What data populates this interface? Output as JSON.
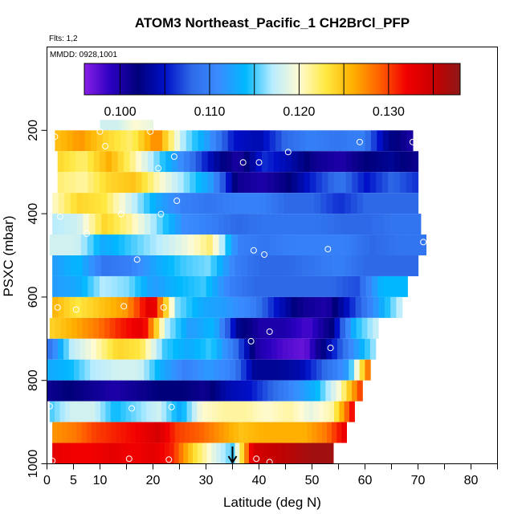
{
  "chart_data": {
    "type": "heatmap",
    "title": "ATOM3 Northeast_Pacific_1 CH2BrCl_PFP",
    "annotations": [
      "Flts: 1,2",
      "MMDD: 0928,1001"
    ],
    "xlabel": "Latitude (deg N)",
    "ylabel": "PSXC (mbar)",
    "xlim": [
      0,
      85
    ],
    "ylim": [
      1000,
      0
    ],
    "x_ticks": [
      0,
      5,
      10,
      20,
      30,
      40,
      50,
      60,
      70,
      80
    ],
    "x_minor_ticks": [
      15,
      25,
      35,
      45,
      55,
      65,
      75,
      85
    ],
    "y_ticks": [
      200,
      400,
      600,
      800,
      1000
    ],
    "colorbar": {
      "range": [
        0.096,
        0.138
      ],
      "tick_values": [
        0.1,
        0.11,
        0.12,
        0.13
      ],
      "tick_labels": [
        "0.100",
        "0.110",
        "0.120",
        "0.130"
      ],
      "colors": [
        "#8a1ee6",
        "#2a00c0",
        "#00007a",
        "#0010c8",
        "#2e6ae8",
        "#3a8cff",
        "#00b8ff",
        "#b8ecff",
        "#fffbd2",
        "#ffe840",
        "#ffb000",
        "#ff6000",
        "#f20000",
        "#c80000",
        "#8e1818"
      ]
    },
    "rows": [
      {
        "p": 200,
        "x0": 10,
        "x1": 20,
        "v": [
          0.118,
          0.118,
          0.12,
          0.119
        ]
      },
      {
        "p": 225,
        "x0": 1.5,
        "x1": 69,
        "v": [
          0.125,
          0.127,
          0.124,
          0.122,
          0.128,
          0.117,
          0.112,
          0.105,
          0.104,
          0.108,
          0.11,
          0.109,
          0.11,
          0.103,
          0.1
        ]
      },
      {
        "p": 275,
        "x0": 2,
        "x1": 70,
        "v": [
          0.124,
          0.122,
          0.126,
          0.121,
          0.115,
          0.11,
          0.104,
          0.1,
          0.106,
          0.104,
          0.101,
          0.1,
          0.102,
          0.103,
          0.101
        ]
      },
      {
        "p": 325,
        "x0": 2,
        "x1": 70,
        "v": [
          0.122,
          0.121,
          0.124,
          0.125,
          0.12,
          0.116,
          0.112,
          0.101,
          0.1,
          0.102,
          0.106,
          0.109,
          0.105,
          0.108,
          0.106
        ]
      },
      {
        "p": 375,
        "x0": 1,
        "x1": 70,
        "v": [
          0.12,
          0.124,
          0.123,
          0.118,
          0.113,
          0.11,
          0.109,
          0.11,
          0.11,
          0.108,
          0.108,
          0.106,
          0.108,
          0.108,
          0.108
        ]
      },
      {
        "p": 425,
        "x0": 1,
        "x1": 70.5,
        "v": [
          0.117,
          0.118,
          0.124,
          0.121,
          0.116,
          0.111,
          0.11,
          0.108,
          0.109,
          0.109,
          0.109,
          0.108,
          0.108,
          0.109,
          0.109
        ]
      },
      {
        "p": 475,
        "x0": 0.5,
        "x1": 71.5,
        "v": [
          0.118,
          0.118,
          0.113,
          0.115,
          0.117,
          0.119,
          0.122,
          0.11,
          0.109,
          0.11,
          0.11,
          0.11,
          0.108,
          0.109,
          0.109
        ]
      },
      {
        "p": 525,
        "x0": 1,
        "x1": 70,
        "v": [
          0.112,
          0.114,
          0.109,
          0.11,
          0.113,
          0.115,
          0.116,
          0.11,
          0.108,
          0.108,
          0.109,
          0.11,
          0.108,
          0.108,
          0.108
        ]
      },
      {
        "p": 575,
        "x0": 1,
        "x1": 68,
        "v": [
          0.112,
          0.113,
          0.117,
          0.116,
          0.112,
          0.114,
          0.115,
          0.11,
          0.108,
          0.108,
          0.108,
          0.108,
          0.107,
          0.114,
          0.114
        ]
      },
      {
        "p": 625,
        "x0": 1,
        "x1": 67,
        "v": [
          0.126,
          0.123,
          0.125,
          0.127,
          0.134,
          0.116,
          0.113,
          0.112,
          0.11,
          0.105,
          0.101,
          0.1,
          0.106,
          0.112,
          0.118
        ]
      },
      {
        "p": 675,
        "x0": 0.5,
        "x1": 62.5,
        "v": [
          0.124,
          0.126,
          0.128,
          0.131,
          0.133,
          0.117,
          0.112,
          0.114,
          0.103,
          0.1,
          0.1,
          0.098,
          0.102,
          0.114,
          0.118
        ]
      },
      {
        "p": 725,
        "x0": 0,
        "x1": 62,
        "v": [
          0.108,
          0.117,
          0.12,
          0.124,
          0.123,
          0.115,
          0.113,
          0.115,
          0.109,
          0.1,
          0.098,
          0.097,
          0.104,
          0.111,
          0.117
        ]
      },
      {
        "p": 775,
        "x0": 0,
        "x1": 61,
        "v": [
          0.113,
          0.114,
          0.117,
          0.118,
          0.118,
          0.113,
          0.11,
          0.112,
          0.11,
          0.103,
          0.103,
          0.104,
          0.108,
          0.112,
          0.13
        ]
      },
      {
        "p": 825,
        "x0": 0,
        "x1": 59.5,
        "v": [
          0.101,
          0.102,
          0.101,
          0.1,
          0.101,
          0.102,
          0.102,
          0.101,
          0.104,
          0.105,
          0.108,
          0.111,
          0.114,
          0.12,
          0.131
        ]
      },
      {
        "p": 875,
        "x0": 0.5,
        "x1": 58,
        "v": [
          0.115,
          0.118,
          0.118,
          0.114,
          0.116,
          0.118,
          0.113,
          0.12,
          0.121,
          0.121,
          0.12,
          0.121,
          0.119,
          0.121,
          0.133
        ]
      },
      {
        "p": 925,
        "x0": 1,
        "x1": 56.5,
        "v": [
          0.127,
          0.128,
          0.13,
          0.131,
          0.132,
          0.134,
          0.13,
          0.129,
          0.127,
          0.125,
          0.126,
          0.126,
          0.126,
          0.128,
          0.133
        ]
      },
      {
        "p": 975,
        "x0": 1,
        "x1": 54,
        "v": [
          0.133,
          0.132,
          0.132,
          0.133,
          0.132,
          0.133,
          0.131,
          0.124,
          0.119,
          0.115,
          0.134,
          0.135,
          0.136,
          0.137,
          0.137
        ]
      }
    ],
    "points": [
      [
        1.5,
        215
      ],
      [
        10,
        203
      ],
      [
        11,
        238
      ],
      [
        19.5,
        203
      ],
      [
        24,
        263
      ],
      [
        37,
        277
      ],
      [
        40,
        277
      ],
      [
        45.5,
        252
      ],
      [
        59,
        228
      ],
      [
        69,
        228
      ],
      [
        21,
        291
      ],
      [
        24.5,
        369
      ],
      [
        2.5,
        407
      ],
      [
        14,
        401
      ],
      [
        21.5,
        401
      ],
      [
        7.5,
        448
      ],
      [
        39,
        488
      ],
      [
        41,
        498
      ],
      [
        53,
        485
      ],
      [
        71,
        468
      ],
      [
        17,
        510
      ],
      [
        0,
        510
      ],
      [
        2,
        625
      ],
      [
        5.5,
        630
      ],
      [
        14.5,
        622
      ],
      [
        22,
        625
      ],
      [
        38.5,
        706
      ],
      [
        42,
        683
      ],
      [
        53.5,
        722
      ],
      [
        0.5,
        862
      ],
      [
        16,
        867
      ],
      [
        23.5,
        864
      ],
      [
        1,
        993
      ],
      [
        15.5,
        988
      ],
      [
        23,
        990
      ],
      [
        39.5,
        988
      ],
      [
        42,
        996
      ],
      [
        47.5,
        1007
      ]
    ],
    "marker": {
      "x": 35,
      "label": "↓"
    }
  }
}
